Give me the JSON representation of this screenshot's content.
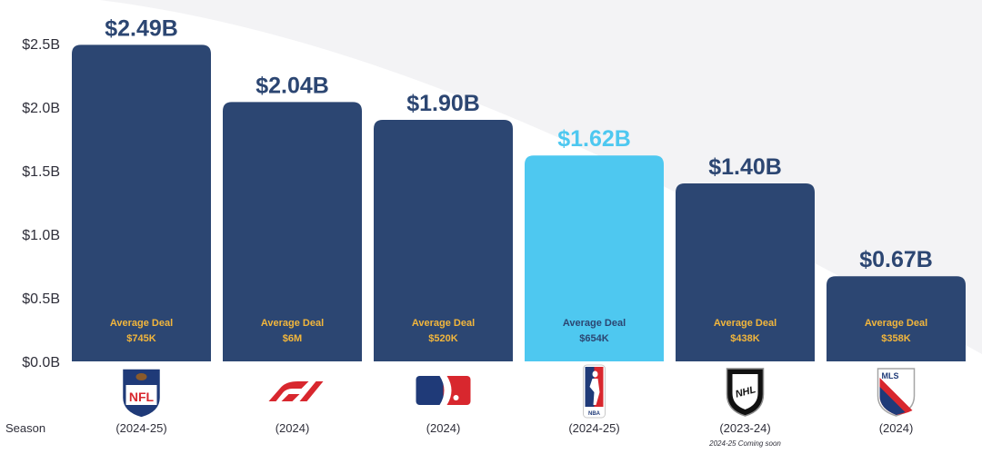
{
  "chart_data": {
    "type": "bar",
    "categories": [
      "NFL",
      "F1",
      "MLB",
      "NBA",
      "NHL",
      "MLS"
    ],
    "values": [
      2.49,
      2.04,
      1.9,
      1.62,
      1.4,
      0.67
    ],
    "value_labels": [
      "$2.49B",
      "$2.04B",
      "$1.90B",
      "$1.62B",
      "$1.40B",
      "$0.67B"
    ],
    "highlight_index": 3,
    "ylim": [
      0,
      2.5
    ],
    "yticks": [
      0,
      0.5,
      1.0,
      1.5,
      2.0,
      2.5
    ],
    "ytick_labels": [
      "$0.0B",
      "$0.5B",
      "$1.0B",
      "$1.5B",
      "$2.0B",
      "$2.5B"
    ],
    "bar_inner_title": "Average Deal",
    "average_deals": [
      "$745K",
      "$6M",
      "$520K",
      "$654K",
      "$438K",
      "$358K"
    ],
    "row_label": "Season",
    "seasons": [
      "(2024-25)",
      "(2024)",
      "(2024)",
      "(2024-25)",
      "(2023-24)",
      "(2024)"
    ],
    "season_notes": [
      "",
      "",
      "",
      "",
      "2024-25 Coming soon",
      ""
    ],
    "logo_icons": [
      "nfl-logo-icon",
      "f1-logo-icon",
      "mlb-logo-icon",
      "nba-logo-icon",
      "nhl-logo-icon",
      "mls-logo-icon"
    ],
    "logo_texts": [
      "NFL",
      "F1",
      "",
      "NBA",
      "NHL",
      "MLS"
    ],
    "grid": false,
    "legend": "none"
  },
  "colors": {
    "bar": "#2c4672",
    "bar_highlight": "#4ec8f0",
    "label_dark": "#2c4672",
    "label_highlight": "#4ec8f0",
    "deal_text": "#f2b63c",
    "deal_text_highlight": "#2c4672",
    "red": "#d8272e",
    "navy": "#1f3a78"
  }
}
